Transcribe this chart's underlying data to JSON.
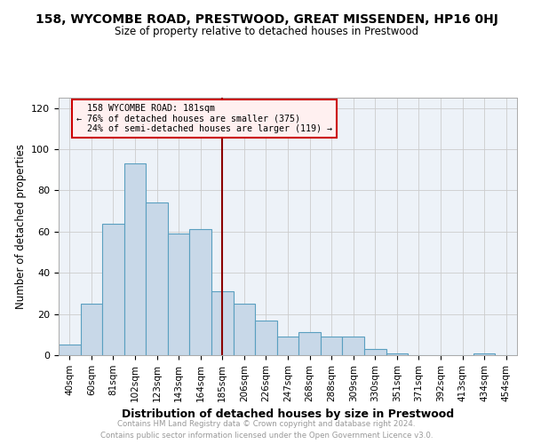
{
  "title": "158, WYCOMBE ROAD, PRESTWOOD, GREAT MISSENDEN, HP16 0HJ",
  "subtitle": "Size of property relative to detached houses in Prestwood",
  "xlabel": "Distribution of detached houses by size in Prestwood",
  "ylabel": "Number of detached properties",
  "bar_labels": [
    "40sqm",
    "60sqm",
    "81sqm",
    "102sqm",
    "123sqm",
    "143sqm",
    "164sqm",
    "185sqm",
    "206sqm",
    "226sqm",
    "247sqm",
    "268sqm",
    "288sqm",
    "309sqm",
    "330sqm",
    "351sqm",
    "371sqm",
    "392sqm",
    "413sqm",
    "434sqm",
    "454sqm"
  ],
  "bar_values": [
    5,
    25,
    64,
    93,
    74,
    59,
    61,
    31,
    25,
    17,
    9,
    11,
    9,
    9,
    3,
    1,
    0,
    0,
    0,
    1,
    0
  ],
  "bar_color": "#c8d8e8",
  "bar_edge_color": "#5a9fc0",
  "property_line_x": 7.0,
  "property_line_label": "158 WYCOMBE ROAD: 181sqm",
  "annotation_line1": "76% of detached houses are smaller (375)",
  "annotation_line2": "24% of semi-detached houses are larger (119) →",
  "property_line_color": "#8b0000",
  "annotation_box_facecolor": "#fff0f0",
  "annotation_box_edgecolor": "#cc0000",
  "ylim": [
    0,
    125
  ],
  "yticks": [
    0,
    20,
    40,
    60,
    80,
    100,
    120
  ],
  "grid_color": "#cccccc",
  "bg_color": "#edf2f8",
  "footer_text": "Contains HM Land Registry data © Crown copyright and database right 2024.\nContains public sector information licensed under the Open Government Licence v3.0.",
  "footer_color": "#999999"
}
